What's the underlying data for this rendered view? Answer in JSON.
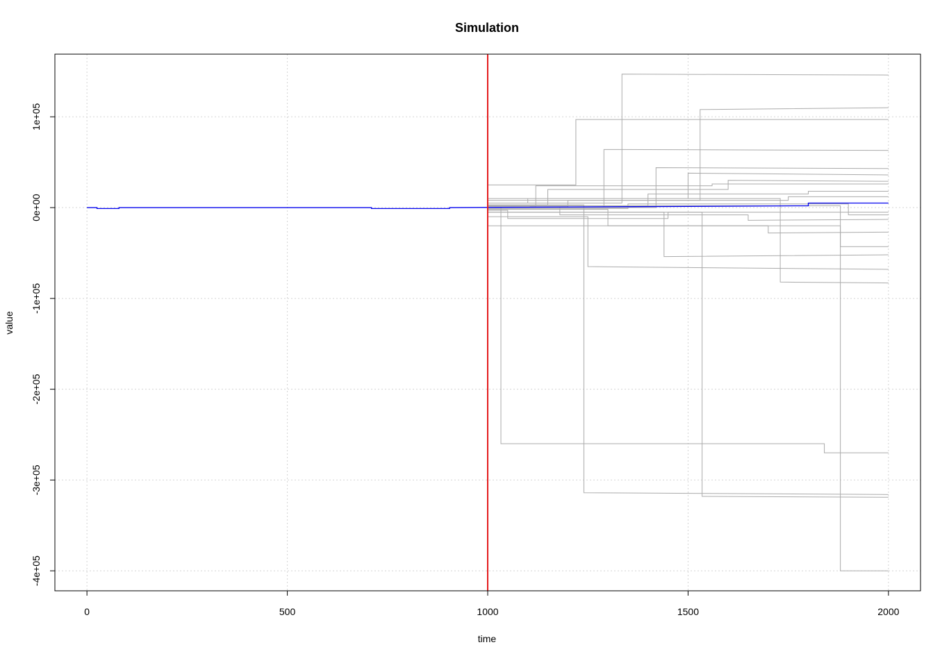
{
  "chart_data": {
    "type": "line",
    "title": "Simulation",
    "x_label": "time",
    "y_label": "value",
    "xlim": [
      -80,
      2080
    ],
    "ylim": [
      -422000,
      169000
    ],
    "xticks": [
      0,
      500,
      1000,
      1500,
      2000
    ],
    "yticks": [
      {
        "value": -400000,
        "label": "-4e+05"
      },
      {
        "value": -300000,
        "label": "-3e+05"
      },
      {
        "value": -200000,
        "label": "-2e+05"
      },
      {
        "value": -100000,
        "label": "-1e+05"
      },
      {
        "value": 0,
        "label": "0e+00"
      },
      {
        "value": 100000,
        "label": "1e+05"
      }
    ],
    "grid": true,
    "vline": {
      "x": 1000,
      "color": "#e41a1c"
    },
    "series": [
      {
        "color": "#aaaaaa",
        "x": [
          1000,
          1033,
          1033,
          1840,
          1840,
          2000
        ],
        "values": [
          0,
          0,
          -260000,
          -260000,
          -270000,
          -270000
        ]
      },
      {
        "color": "#aaaaaa",
        "x": [
          1000,
          1240,
          1240,
          2000
        ],
        "values": [
          3000,
          3000,
          -314000,
          -316000
        ]
      },
      {
        "color": "#aaaaaa",
        "x": [
          1000,
          1535,
          1535,
          2000
        ],
        "values": [
          -5000,
          -5000,
          -318000,
          -319000
        ]
      },
      {
        "color": "#aaaaaa",
        "x": [
          1000,
          1880,
          1880,
          2000
        ],
        "values": [
          2000,
          2000,
          -400000,
          -400000
        ]
      },
      {
        "color": "#aaaaaa",
        "x": [
          1000,
          1335,
          1335,
          2000
        ],
        "values": [
          5000,
          5000,
          147000,
          146000
        ]
      },
      {
        "color": "#aaaaaa",
        "x": [
          1000,
          1530,
          1530,
          2000
        ],
        "values": [
          8000,
          8000,
          108000,
          110000
        ]
      },
      {
        "color": "#aaaaaa",
        "x": [
          1000,
          1220,
          1220,
          2000
        ],
        "values": [
          25000,
          25000,
          97000,
          97000
        ]
      },
      {
        "color": "#aaaaaa",
        "x": [
          1000,
          1250,
          1250,
          2000
        ],
        "values": [
          -10000,
          -10000,
          -65000,
          -68000
        ]
      },
      {
        "color": "#aaaaaa",
        "x": [
          1000,
          1730,
          1730,
          2000
        ],
        "values": [
          10000,
          10000,
          -82000,
          -83000
        ]
      },
      {
        "color": "#aaaaaa",
        "x": [
          1000,
          1290,
          1290,
          2000
        ],
        "values": [
          0,
          0,
          64000,
          63000
        ]
      },
      {
        "color": "#aaaaaa",
        "x": [
          1000,
          1440,
          1440,
          2000
        ],
        "values": [
          -5000,
          -5000,
          -54000,
          -52000
        ]
      },
      {
        "color": "#aaaaaa",
        "x": [
          1000,
          1880,
          1880,
          2000
        ],
        "values": [
          -20000,
          -20000,
          -43000,
          -43000
        ]
      },
      {
        "color": "#aaaaaa",
        "x": [
          1000,
          1150,
          1150,
          1600,
          1600,
          2000
        ],
        "values": [
          3000,
          3000,
          20000,
          20000,
          30000,
          29000
        ]
      },
      {
        "color": "#aaaaaa",
        "x": [
          1000,
          1300,
          1300,
          1700,
          1700,
          2000
        ],
        "values": [
          -2000,
          -2000,
          -20000,
          -20000,
          -28000,
          -27000
        ]
      },
      {
        "color": "#aaaaaa",
        "x": [
          1000,
          1100,
          1100,
          1500,
          1500,
          2000
        ],
        "values": [
          5000,
          5000,
          10000,
          10000,
          38000,
          36000
        ]
      },
      {
        "color": "#aaaaaa",
        "x": [
          1000,
          1180,
          1180,
          1650,
          1650,
          2000
        ],
        "values": [
          0,
          0,
          -8000,
          -8000,
          -14000,
          -13000
        ]
      },
      {
        "color": "#aaaaaa",
        "x": [
          1000,
          1400,
          1400,
          1800,
          1800,
          2000
        ],
        "values": [
          2000,
          2000,
          15000,
          15000,
          18000,
          18000
        ]
      },
      {
        "color": "#aaaaaa",
        "x": [
          1000,
          1050,
          1050,
          1450,
          1450,
          2000
        ],
        "values": [
          -3000,
          -3000,
          -12000,
          -12000,
          -5000,
          -5000
        ]
      },
      {
        "color": "#aaaaaa",
        "x": [
          1000,
          1200,
          1200,
          1750,
          1750,
          2000
        ],
        "values": [
          1000,
          1000,
          8000,
          8000,
          12000,
          12000
        ]
      },
      {
        "color": "#aaaaaa",
        "x": [
          1000,
          1350,
          1350,
          1900,
          1900,
          2000
        ],
        "values": [
          -1000,
          -1000,
          4000,
          4000,
          -8000,
          -8000
        ]
      },
      {
        "color": "#aaaaaa",
        "x": [
          1000,
          1120,
          1120,
          1560,
          1560,
          2000
        ],
        "values": [
          1000,
          1000,
          24000,
          24000,
          26000,
          26000
        ]
      },
      {
        "color": "#aaaaaa",
        "x": [
          1000,
          1420,
          1420,
          2000
        ],
        "values": [
          0,
          0,
          44000,
          43000
        ]
      },
      {
        "color": "#0000ee",
        "x": [
          0,
          25,
          25,
          80,
          80,
          710,
          710,
          905,
          905,
          1800,
          1800,
          2000
        ],
        "values": [
          0,
          0,
          -1000,
          -1000,
          0,
          0,
          -1000,
          -1000,
          0,
          2000,
          5000,
          5000
        ]
      }
    ]
  }
}
